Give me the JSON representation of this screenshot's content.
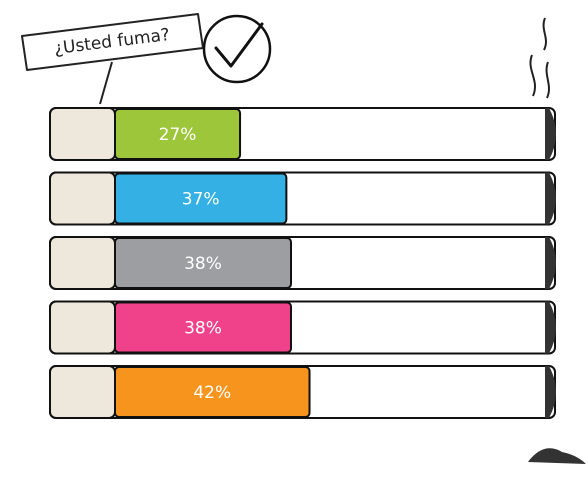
{
  "chart_data": {
    "type": "bar",
    "title": "¿Usted fuma?",
    "values": [
      27,
      37,
      38,
      38,
      42
    ],
    "value_labels": [
      "27%",
      "37%",
      "38%",
      "38%",
      "42%"
    ],
    "colors": [
      "#9dc63b",
      "#34b0e4",
      "#9c9ea1",
      "#f0428a",
      "#f7941d"
    ],
    "xlim": [
      0,
      95
    ]
  }
}
